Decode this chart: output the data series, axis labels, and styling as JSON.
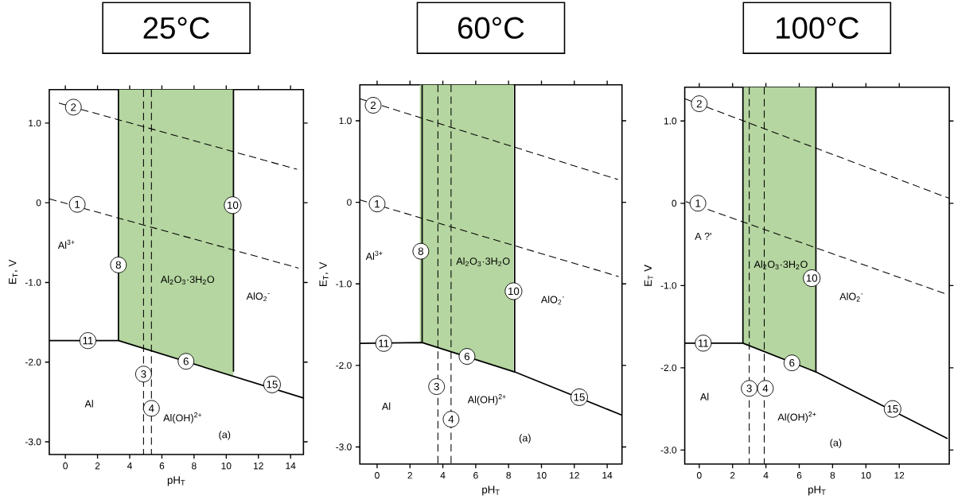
{
  "chart_data": [
    {
      "type": "line",
      "title": "25°C",
      "xlabel": "pH$_{T}$",
      "ylabel": "E$_{T}$, V",
      "xlim": [
        -1.0,
        14.8
      ],
      "ylim": [
        -3.16,
        1.42
      ],
      "xticks": [
        0,
        2,
        4,
        6,
        8,
        10,
        12,
        14
      ],
      "yticks": [
        {
          "value": 1,
          "label": "1.0"
        },
        0,
        {
          "value": -1,
          "label": "-1.0"
        },
        {
          "value": -2,
          "label": "-2.0"
        },
        {
          "value": -3,
          "label": "-3.0"
        }
      ],
      "grid": false,
      "bands": [
        {
          "axis": "x",
          "from": 3.3,
          "to": 10.45,
          "color": "#b5d6a0"
        }
      ],
      "series": [
        {
          "color": "#000000",
          "line_style": "solid",
          "x": [
            -1.0,
            3.3,
            14.8
          ],
          "values": [
            -1.73,
            -1.73,
            -2.45
          ]
        },
        {
          "color": "#000000",
          "line_style": "solid",
          "x": [
            3.3,
            3.3
          ],
          "values": [
            -1.73,
            1.42
          ]
        },
        {
          "color": "#000000",
          "line_style": "solid",
          "x": [
            10.45,
            10.45
          ],
          "values": [
            -2.12,
            1.42
          ]
        },
        {
          "color": "#000000",
          "line_style": "dashed",
          "x": [
            -0.4,
            14.4
          ],
          "values": [
            1.25,
            0.42
          ]
        },
        {
          "color": "#000000",
          "line_style": "dashed",
          "x": [
            -1.0,
            14.5
          ],
          "values": [
            0.05,
            -0.82
          ]
        },
        {
          "color": "#000000",
          "line_style": "dashed",
          "x": [
            4.86,
            4.86
          ],
          "values": [
            1.42,
            -3.16
          ]
        },
        {
          "color": "#000000",
          "line_style": "dashed",
          "x": [
            5.35,
            5.35
          ],
          "values": [
            1.42,
            -3.16
          ]
        }
      ],
      "annotations": [
        {
          "text": "2",
          "x": 0.5,
          "y": 1.2
        },
        {
          "text": "1",
          "x": 0.74,
          "y": -0.02
        },
        {
          "text": "8",
          "x": 3.3,
          "y": -0.78
        },
        {
          "text": "10",
          "x": 10.4,
          "y": -0.03
        },
        {
          "text": "11",
          "x": 1.4,
          "y": -1.73
        },
        {
          "text": "6",
          "x": 7.5,
          "y": -1.99
        },
        {
          "text": "15",
          "x": 12.85,
          "y": -2.28
        },
        {
          "text": "3",
          "x": 4.86,
          "y": -2.15
        },
        {
          "text": "4",
          "x": 5.35,
          "y": -2.58
        },
        "Al$^{3+}$",
        "Al$_{2}$O$_{3}$·3H$_{2}$O",
        "AlO$_{2}$$^{-}$",
        "Al",
        "Al(OH)$^{2+}$",
        "(a)"
      ]
    },
    {
      "type": "line",
      "title": "60°C",
      "xlabel": "pH$_{T}$",
      "ylabel": "E$_{T}$, V",
      "xlim": [
        -1.05,
        14.9
      ],
      "ylim": [
        -3.21,
        1.44
      ],
      "xticks": [
        0,
        2,
        4,
        6,
        8,
        10,
        12,
        14
      ],
      "yticks": [
        {
          "value": 1,
          "label": "1.0"
        },
        0,
        {
          "value": -1,
          "label": "-1.0"
        },
        {
          "value": -2,
          "label": "-2.0"
        },
        {
          "value": -3,
          "label": "-3.0"
        }
      ],
      "grid": false,
      "bands": [
        {
          "axis": "x",
          "from": 2.6,
          "to": 8.3,
          "color": "#b5d6a0"
        }
      ],
      "series": [
        {
          "color": "#000000",
          "line_style": "solid",
          "x": [
            -1.05,
            2.74,
            8.37,
            14.9
          ],
          "values": [
            -1.73,
            -1.72,
            -2.08,
            -2.61
          ]
        },
        {
          "color": "#000000",
          "line_style": "solid",
          "x": [
            2.74,
            2.74
          ],
          "values": [
            -1.72,
            1.44
          ]
        },
        {
          "color": "#000000",
          "line_style": "solid",
          "x": [
            8.37,
            8.37
          ],
          "values": [
            -2.08,
            1.44
          ]
        },
        {
          "color": "#000000",
          "line_style": "dashed",
          "x": [
            -1.05,
            14.65
          ],
          "values": [
            1.27,
            0.28
          ]
        },
        {
          "color": "#000000",
          "line_style": "dashed",
          "x": [
            -1.05,
            14.7
          ],
          "values": [
            0.03,
            -0.91
          ]
        },
        {
          "color": "#000000",
          "line_style": "dashed",
          "x": [
            3.7,
            3.7
          ],
          "values": [
            1.44,
            -3.21
          ]
        },
        {
          "color": "#000000",
          "line_style": "dashed",
          "x": [
            4.5,
            4.5
          ],
          "values": [
            1.44,
            -3.21
          ]
        }
      ],
      "annotations": [
        {
          "text": "2",
          "x": -0.24,
          "y": 1.19
        },
        {
          "text": "1",
          "x": 0.0,
          "y": -0.02
        },
        {
          "text": "8",
          "x": 2.66,
          "y": -0.6
        },
        {
          "text": "10",
          "x": 8.3,
          "y": -1.09
        },
        {
          "text": "11",
          "x": 0.4,
          "y": -1.73
        },
        {
          "text": "6",
          "x": 5.47,
          "y": -1.89
        },
        {
          "text": "15",
          "x": 12.3,
          "y": -2.39
        },
        {
          "text": "3",
          "x": 3.62,
          "y": -2.26
        },
        {
          "text": "4",
          "x": 4.5,
          "y": -2.66
        },
        "Al$^{3+}$",
        "Al$_{2}$O$_{3}$·3H$_{2}$O",
        "AlO$_{2}$$^{-}$",
        "Al",
        "Al(OH)$^{2+}$",
        "(a)"
      ]
    },
    {
      "type": "line",
      "title": "100°C",
      "xlabel": "pH$_{T}$",
      "ylabel": "E$_{T}$ V",
      "xlim": [
        -0.87,
        15.0
      ],
      "ylim": [
        -3.17,
        1.41
      ],
      "xticks": [
        0,
        2,
        4,
        6,
        8,
        10,
        12
      ],
      "yticks": [
        {
          "value": 1,
          "label": "1.0"
        },
        0,
        {
          "value": -1,
          "label": "-1.0"
        },
        {
          "value": -2,
          "label": "-2.0"
        },
        {
          "value": -3,
          "label": "-3.0"
        }
      ],
      "grid": false,
      "bands": [
        {
          "axis": "x",
          "from": 2.62,
          "to": 7.0,
          "color": "#b5d6a0"
        }
      ],
      "series": [
        {
          "color": "#000000",
          "line_style": "solid",
          "x": [
            -0.87,
            2.62,
            7.0,
            14.9
          ],
          "values": [
            -1.7,
            -1.7,
            -2.05,
            -2.86
          ]
        },
        {
          "color": "#000000",
          "line_style": "solid",
          "x": [
            2.62,
            2.62
          ],
          "values": [
            -1.7,
            1.41
          ]
        },
        {
          "color": "#000000",
          "line_style": "solid",
          "x": [
            7.0,
            7.0
          ],
          "values": [
            -2.05,
            1.41
          ]
        },
        {
          "color": "#000000",
          "line_style": "dashed",
          "x": [
            -0.87,
            15.0
          ],
          "values": [
            1.27,
            0.06
          ]
        },
        {
          "color": "#000000",
          "line_style": "dashed",
          "x": [
            -0.8,
            14.9
          ],
          "values": [
            0.02,
            -1.11
          ]
        },
        {
          "color": "#000000",
          "line_style": "dashed",
          "x": [
            3.0,
            3.0
          ],
          "values": [
            1.41,
            -3.17
          ]
        },
        {
          "color": "#000000",
          "line_style": "dashed",
          "x": [
            3.9,
            3.9
          ],
          "values": [
            1.41,
            -3.17
          ]
        }
      ],
      "annotations": [
        {
          "text": "2",
          "x": 0.0,
          "y": 1.21
        },
        {
          "text": "1",
          "x": -0.08,
          "y": 0.0
        },
        {
          "text": "10",
          "x": 6.75,
          "y": -0.91
        },
        {
          "text": "11",
          "x": 0.24,
          "y": -1.7
        },
        {
          "text": "6",
          "x": 5.56,
          "y": -1.94
        },
        {
          "text": "15",
          "x": 11.6,
          "y": -2.5
        },
        {
          "text": "3",
          "x": 3.0,
          "y": -2.25
        },
        {
          "text": "4",
          "x": 3.97,
          "y": -2.25
        },
        "A ?'",
        "Al$_{2}$O$_{3}$·3H$_{2}$O",
        "AlO$_{2}$$^{-}$",
        "Al",
        "Al(OH)$^{2+}$",
        "(a)"
      ]
    }
  ]
}
